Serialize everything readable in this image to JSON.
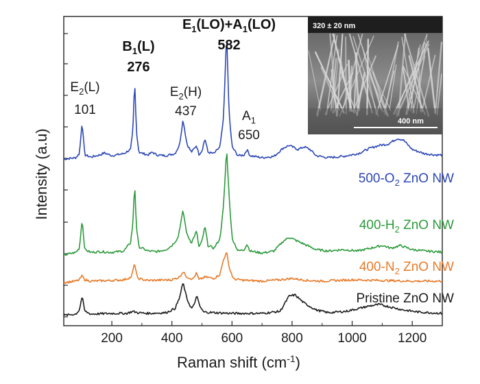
{
  "chart_data": {
    "type": "line",
    "title": "",
    "xlabel": "Raman shift (cm",
    "xlabel_sup": "-1",
    "xlabel_end": ")",
    "ylabel": "Intensity (a.u)",
    "xlim": [
      40,
      1300
    ],
    "xticks": [
      200,
      400,
      600,
      800,
      1000,
      1200
    ],
    "xtick_labels": [
      "200",
      "400",
      "600",
      "800",
      "1000",
      "1200"
    ],
    "y_ticks_labeled": false,
    "grid": false,
    "series": [
      {
        "label_main": "500-O",
        "label_sub": "2",
        "label_rest": " ZnO NW",
        "color": "#2b46b5",
        "offset": 232,
        "points": [
          [
            40,
            0
          ],
          [
            80,
            2
          ],
          [
            92,
            8
          ],
          [
            101,
            54
          ],
          [
            110,
            6
          ],
          [
            130,
            3
          ],
          [
            160,
            6
          ],
          [
            175,
            9
          ],
          [
            200,
            5
          ],
          [
            240,
            8
          ],
          [
            262,
            14
          ],
          [
            270,
            40
          ],
          [
            276,
            115
          ],
          [
            282,
            40
          ],
          [
            290,
            10
          ],
          [
            320,
            6
          ],
          [
            335,
            10
          ],
          [
            350,
            6
          ],
          [
            380,
            5
          ],
          [
            410,
            8
          ],
          [
            425,
            20
          ],
          [
            437,
            58
          ],
          [
            450,
            22
          ],
          [
            465,
            10
          ],
          [
            482,
            20
          ],
          [
            490,
            7
          ],
          [
            500,
            12
          ],
          [
            510,
            30
          ],
          [
            520,
            10
          ],
          [
            540,
            8
          ],
          [
            560,
            18
          ],
          [
            572,
            60
          ],
          [
            582,
            185
          ],
          [
            590,
            70
          ],
          [
            600,
            18
          ],
          [
            620,
            5
          ],
          [
            640,
            6
          ],
          [
            650,
            14
          ],
          [
            660,
            5
          ],
          [
            700,
            2
          ],
          [
            740,
            4
          ],
          [
            770,
            16
          ],
          [
            790,
            20
          ],
          [
            820,
            14
          ],
          [
            840,
            18
          ],
          [
            860,
            14
          ],
          [
            880,
            5
          ],
          [
            920,
            2
          ],
          [
            970,
            4
          ],
          [
            1020,
            8
          ],
          [
            1060,
            16
          ],
          [
            1090,
            20
          ],
          [
            1120,
            22
          ],
          [
            1150,
            30
          ],
          [
            1170,
            28
          ],
          [
            1200,
            14
          ],
          [
            1240,
            8
          ],
          [
            1280,
            6
          ],
          [
            1300,
            6
          ]
        ]
      },
      {
        "label_main": "400-H",
        "label_sub": "2",
        "label_rest": " ZnO NW",
        "color": "#2a9a3a",
        "offset": 372,
        "points": [
          [
            40,
            0
          ],
          [
            80,
            4
          ],
          [
            92,
            10
          ],
          [
            101,
            52
          ],
          [
            110,
            8
          ],
          [
            130,
            4
          ],
          [
            160,
            5
          ],
          [
            200,
            4
          ],
          [
            240,
            6
          ],
          [
            262,
            18
          ],
          [
            270,
            45
          ],
          [
            276,
            105
          ],
          [
            282,
            40
          ],
          [
            290,
            12
          ],
          [
            320,
            6
          ],
          [
            350,
            5
          ],
          [
            380,
            8
          ],
          [
            400,
            14
          ],
          [
            420,
            25
          ],
          [
            437,
            65
          ],
          [
            450,
            30
          ],
          [
            465,
            18
          ],
          [
            482,
            35
          ],
          [
            490,
            12
          ],
          [
            500,
            20
          ],
          [
            510,
            42
          ],
          [
            520,
            14
          ],
          [
            540,
            10
          ],
          [
            560,
            24
          ],
          [
            572,
            72
          ],
          [
            582,
            155
          ],
          [
            590,
            90
          ],
          [
            600,
            25
          ],
          [
            620,
            6
          ],
          [
            640,
            8
          ],
          [
            650,
            16
          ],
          [
            660,
            6
          ],
          [
            700,
            3
          ],
          [
            740,
            6
          ],
          [
            770,
            20
          ],
          [
            790,
            26
          ],
          [
            820,
            20
          ],
          [
            850,
            14
          ],
          [
            880,
            8
          ],
          [
            920,
            6
          ],
          [
            970,
            8
          ],
          [
            1020,
            6
          ],
          [
            1060,
            10
          ],
          [
            1100,
            14
          ],
          [
            1130,
            10
          ],
          [
            1160,
            14
          ],
          [
            1200,
            8
          ],
          [
            1240,
            6
          ],
          [
            1280,
            5
          ],
          [
            1300,
            4
          ]
        ]
      },
      {
        "label_main": "400-N",
        "label_sub": "2",
        "label_rest": " ZnO NW",
        "color": "#e87a28",
        "offset": 412,
        "points": [
          [
            40,
            0
          ],
          [
            80,
            2
          ],
          [
            92,
            4
          ],
          [
            101,
            10
          ],
          [
            110,
            4
          ],
          [
            130,
            2
          ],
          [
            200,
            3
          ],
          [
            240,
            4
          ],
          [
            265,
            8
          ],
          [
            276,
            28
          ],
          [
            285,
            6
          ],
          [
            320,
            3
          ],
          [
            400,
            4
          ],
          [
            425,
            8
          ],
          [
            437,
            16
          ],
          [
            450,
            8
          ],
          [
            470,
            5
          ],
          [
            482,
            14
          ],
          [
            490,
            4
          ],
          [
            510,
            8
          ],
          [
            540,
            6
          ],
          [
            560,
            12
          ],
          [
            572,
            34
          ],
          [
            582,
            44
          ],
          [
            592,
            20
          ],
          [
            605,
            5
          ],
          [
            650,
            3
          ],
          [
            700,
            2
          ],
          [
            760,
            4
          ],
          [
            800,
            6
          ],
          [
            850,
            3
          ],
          [
            900,
            2
          ],
          [
            1000,
            4
          ],
          [
            1100,
            3
          ],
          [
            1200,
            2
          ],
          [
            1300,
            2
          ]
        ]
      },
      {
        "label_main": "Pristine ZnO NW",
        "label_sub": "",
        "label_rest": "",
        "color": "#1a1a1a",
        "offset": 460,
        "points": [
          [
            40,
            0
          ],
          [
            80,
            2
          ],
          [
            92,
            8
          ],
          [
            101,
            28
          ],
          [
            110,
            6
          ],
          [
            130,
            2
          ],
          [
            200,
            3
          ],
          [
            250,
            3
          ],
          [
            270,
            6
          ],
          [
            285,
            4
          ],
          [
            320,
            3
          ],
          [
            380,
            4
          ],
          [
            410,
            10
          ],
          [
            425,
            25
          ],
          [
            437,
            48
          ],
          [
            450,
            24
          ],
          [
            465,
            10
          ],
          [
            475,
            16
          ],
          [
            482,
            30
          ],
          [
            492,
            14
          ],
          [
            505,
            5
          ],
          [
            540,
            4
          ],
          [
            600,
            3
          ],
          [
            700,
            3
          ],
          [
            760,
            6
          ],
          [
            790,
            28
          ],
          [
            810,
            30
          ],
          [
            840,
            18
          ],
          [
            880,
            8
          ],
          [
            920,
            4
          ],
          [
            980,
            6
          ],
          [
            1020,
            10
          ],
          [
            1060,
            14
          ],
          [
            1090,
            16
          ],
          [
            1130,
            12
          ],
          [
            1170,
            8
          ],
          [
            1220,
            5
          ],
          [
            1260,
            4
          ],
          [
            1300,
            3
          ]
        ]
      }
    ],
    "peak_labels": [
      {
        "main": "E",
        "sub": "2",
        "rest": "(L)",
        "value": "101",
        "x": 101,
        "bold": false
      },
      {
        "main": "B",
        "sub": "1",
        "rest": "(L)",
        "value": "276",
        "x": 276,
        "bold": true
      },
      {
        "main": "E",
        "sub": "2",
        "rest": "(H)",
        "value": "437",
        "x": 437,
        "bold": false
      },
      {
        "main": "E",
        "sub": "1",
        "rest": "(LO)+A",
        "sub2": "1",
        "rest2": "(LO)",
        "value": "582",
        "x": 582,
        "bold": true
      },
      {
        "main": "A",
        "sub": "1",
        "rest": "",
        "value": "650",
        "x": 650,
        "bold": false
      }
    ],
    "inset": {
      "top_label": "320 ± 20 nm",
      "scale_label": "400 nm"
    }
  }
}
